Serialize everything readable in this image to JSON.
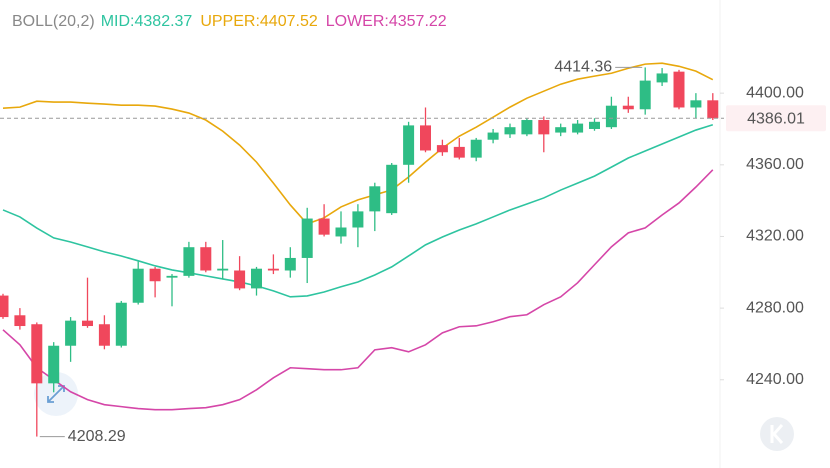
{
  "chart_data": {
    "type": "candlestick",
    "indicator": "BOLL(20,2)",
    "legend": [
      {
        "text": "MID:4382.37",
        "color": "#2ec4a0"
      },
      {
        "text": "UPPER:4407.52",
        "color": "#e8a80c"
      },
      {
        "text": "LOWER:4357.22",
        "color": "#d546a8"
      }
    ],
    "up_color": "#2ebd85",
    "down_color": "#f0475c",
    "candles": {
      "open": [
        4287,
        4276,
        4271,
        4238,
        4259,
        4273,
        4271,
        4259,
        4283,
        4302,
        4297,
        4298,
        4314,
        4301,
        4301,
        4291,
        4302,
        4301,
        4308,
        4330,
        4320,
        4325,
        4334,
        4333,
        4360,
        4382,
        4371,
        4370,
        4364,
        4374,
        4377,
        4377,
        4385,
        4378,
        4378,
        4380,
        4381,
        4393,
        4391,
        4406,
        4412,
        4392,
        4396
      ],
      "high": [
        4288,
        4280,
        4272,
        4261,
        4275,
        4297,
        4276,
        4284,
        4306,
        4303,
        4299,
        4317,
        4317,
        4318,
        4309,
        4303,
        4310,
        4314,
        4336,
        4338,
        4334,
        4338,
        4350,
        4361,
        4384,
        4392,
        4374,
        4375,
        4375,
        4380,
        4383,
        4386,
        4387,
        4383,
        4385,
        4386,
        4398,
        4398,
        4414.36,
        4414,
        4413,
        4400,
        4400
      ],
      "low": [
        4274,
        4268,
        4208.29,
        4233,
        4250,
        4269,
        4257,
        4258,
        4282,
        4286,
        4281,
        4297,
        4300,
        4296,
        4290,
        4287,
        4299,
        4297,
        4294,
        4320,
        4316,
        4314,
        4323,
        4332,
        4350,
        4367,
        4365,
        4363,
        4362,
        4372,
        4375,
        4376,
        4367,
        4376,
        4377,
        4379,
        4380,
        4389,
        4388,
        4404,
        4391,
        4386,
        4385
      ],
      "close": [
        4275,
        4270,
        4238,
        4259,
        4273,
        4270,
        4259,
        4283,
        4302,
        4295,
        4298,
        4314,
        4301,
        4302,
        4291,
        4302,
        4301,
        4308,
        4330,
        4321,
        4325,
        4334,
        4348,
        4360,
        4382,
        4368,
        4367,
        4364,
        4374,
        4378,
        4381,
        4385,
        4377,
        4381,
        4383,
        4384,
        4393,
        4391,
        4407,
        4411,
        4392,
        4396,
        4386.01
      ]
    },
    "bands": {
      "upper": {
        "color": "#e8a80c",
        "values": [
          4391.6,
          4392.2,
          4395.5,
          4395,
          4395,
          4394.4,
          4393.9,
          4393.3,
          4393.3,
          4392.8,
          4391.1,
          4388.9,
          4385,
          4378.8,
          4371,
          4361.5,
          4349.8,
          4337.6,
          4327,
          4330.4,
          4336.5,
          4340.4,
          4343.2,
          4346,
          4353.2,
          4361.5,
          4369.3,
          4376,
          4381,
          4386.6,
          4392.2,
          4397.2,
          4401.1,
          4405,
          4407.8,
          4409.5,
          4411.1,
          4413.9,
          4416.2,
          4416.7,
          4415,
          4412.3,
          4407.52
        ]
      },
      "mid": {
        "color": "#2ec4a0",
        "values": [
          4334.8,
          4330.9,
          4324.7,
          4319.2,
          4316.9,
          4314.2,
          4311.4,
          4309.1,
          4306.4,
          4303.6,
          4301.3,
          4299.7,
          4298,
          4296.3,
          4294.6,
          4292.4,
          4289.6,
          4286.3,
          4286.8,
          4289,
          4291.9,
          4294.6,
          4298.5,
          4303,
          4309.1,
          4315.3,
          4319.7,
          4323.6,
          4327,
          4330.9,
          4334.8,
          4338.1,
          4341.5,
          4345.9,
          4349.8,
          4353.7,
          4358.7,
          4363.8,
          4367.7,
          4371.6,
          4375.5,
          4379.4,
          4382.37
        ]
      },
      "lower": {
        "color": "#d546a8",
        "values": [
          4267.9,
          4259.5,
          4246.7,
          4240,
          4233.3,
          4228.9,
          4226.1,
          4225,
          4223.9,
          4223.3,
          4223.3,
          4223.9,
          4224.4,
          4226.1,
          4228.9,
          4234.4,
          4241.1,
          4246.7,
          4246.2,
          4245.6,
          4245.6,
          4246.7,
          4256.7,
          4257.9,
          4255.6,
          4259.5,
          4266.2,
          4269.6,
          4270.1,
          4272.4,
          4275.2,
          4276.3,
          4281.9,
          4286.3,
          4294.1,
          4304.2,
          4314.2,
          4322,
          4324.8,
          4332,
          4338.7,
          4347.6,
          4357.22
        ]
      }
    },
    "ylim": [
      4198,
      4452
    ],
    "yticks": [
      {
        "value": 4240,
        "label": "4240.00"
      },
      {
        "value": 4280,
        "label": "4280.00"
      },
      {
        "value": 4320,
        "label": "4320.00"
      },
      {
        "value": 4360,
        "label": "4360.00"
      },
      {
        "value": 4400,
        "label": "4400.00"
      }
    ],
    "high_label": "4414.36",
    "low_label": "4208.29",
    "last_price": {
      "value": 4386.01,
      "label": "4386.01"
    }
  }
}
